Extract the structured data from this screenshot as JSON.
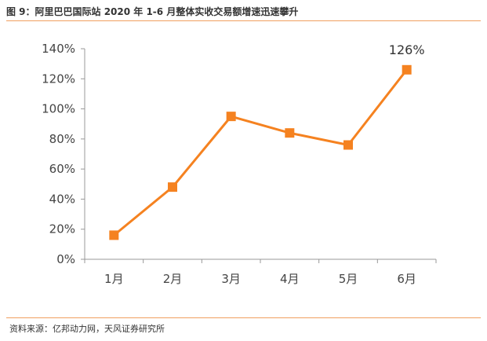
{
  "header": {
    "title": "图 9：阿里巴巴国际站 2020 年 1-6 月整体实收交易额增速迅速攀升"
  },
  "footer": {
    "source": "资料来源：亿邦动力网，天风证券研究所"
  },
  "colors": {
    "series": "#f58220",
    "rule": "#f0a060",
    "axis": "#999999"
  },
  "chart_data": {
    "type": "line",
    "categories": [
      "1月",
      "2月",
      "3月",
      "4月",
      "5月",
      "6月"
    ],
    "series": [
      {
        "values": [
          16,
          48,
          95,
          84,
          76,
          126
        ]
      }
    ],
    "data_labels": [
      {
        "index": 5,
        "text": "126%"
      }
    ],
    "y_tick_labels": [
      "0%",
      "20%",
      "40%",
      "60%",
      "80%",
      "100%",
      "120%",
      "140%"
    ],
    "ylim": [
      0,
      140
    ],
    "grid": false,
    "legend": "none",
    "marker": "square"
  }
}
